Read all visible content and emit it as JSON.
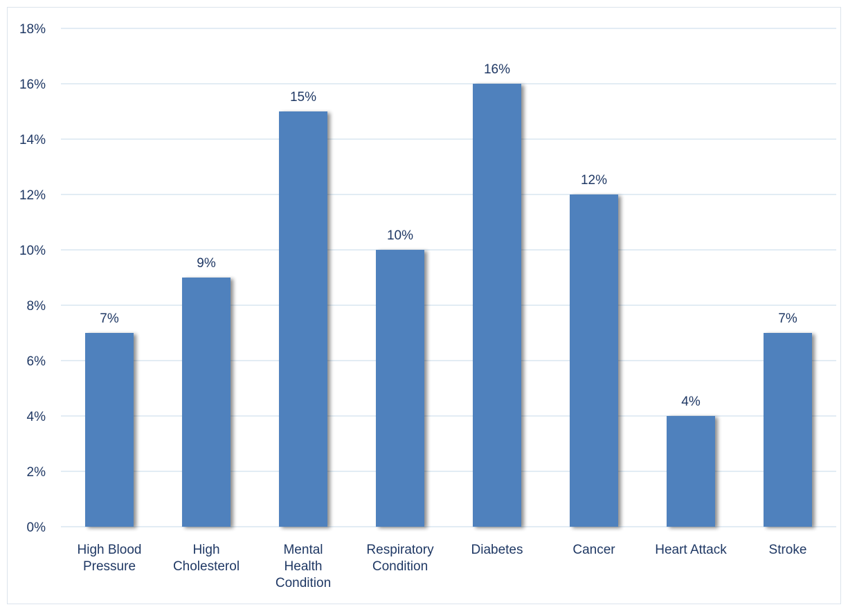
{
  "chart_data": {
    "type": "bar",
    "title": "",
    "xlabel": "",
    "ylabel": "",
    "categories": [
      "High Blood Pressure",
      "High Cholesterol",
      "Mental Health Condition",
      "Respiratory Condition",
      "Diabetes",
      "Cancer",
      "Heart Attack",
      "Stroke"
    ],
    "category_lines": [
      [
        "High Blood",
        "Pressure"
      ],
      [
        "High",
        "Cholesterol"
      ],
      [
        "Mental",
        "Health",
        "Condition"
      ],
      [
        "Respiratory",
        "Condition"
      ],
      [
        "Diabetes"
      ],
      [
        "Cancer"
      ],
      [
        "Heart Attack"
      ],
      [
        "Stroke"
      ]
    ],
    "values": [
      7,
      9,
      15,
      10,
      16,
      12,
      4,
      7
    ],
    "data_labels": [
      "7%",
      "9%",
      "15%",
      "10%",
      "16%",
      "12%",
      "4%",
      "7%"
    ],
    "ylim": [
      0,
      18
    ],
    "yticks": [
      0,
      2,
      4,
      6,
      8,
      10,
      12,
      14,
      16,
      18
    ],
    "ytick_labels": [
      "0%",
      "2%",
      "4%",
      "6%",
      "8%",
      "10%",
      "12%",
      "14%",
      "16%",
      "18%"
    ],
    "grid": true,
    "legend": "none",
    "colors": {
      "bar": "#4f81bd",
      "grid": "#c5d9ea",
      "text": "#1f3864"
    }
  }
}
